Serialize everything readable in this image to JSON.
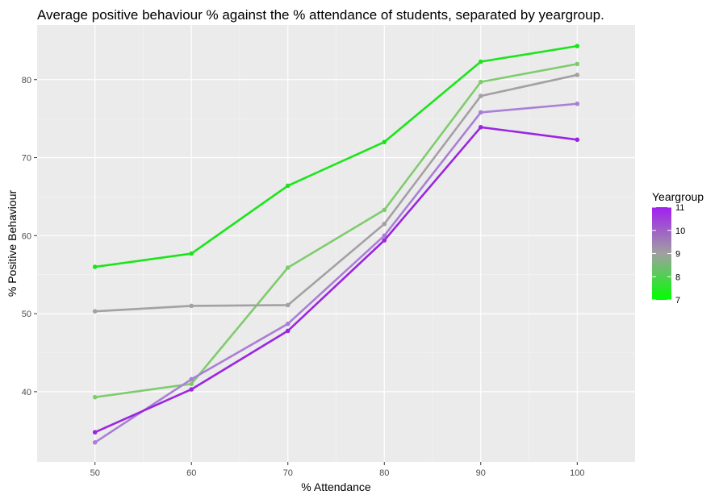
{
  "chart_data": {
    "type": "line",
    "title": "Average positive behaviour % against the % attendance of students, separated by yeargroup.",
    "xlabel": "% Attendance",
    "ylabel": "% Positive Behaviour",
    "x": [
      50,
      60,
      70,
      80,
      90,
      100
    ],
    "x_ticks": [
      "50",
      "60",
      "70",
      "80",
      "90",
      "100"
    ],
    "y_ticks": [
      "40",
      "50",
      "60",
      "70",
      "80"
    ],
    "xlim": [
      44,
      106
    ],
    "ylim": [
      31,
      87
    ],
    "grid": true,
    "legend": {
      "title": "Yeargroup",
      "placement": "right",
      "type": "color-gradient",
      "min": 7,
      "max": 11,
      "ticks": [
        "7",
        "8",
        "9",
        "10",
        "11"
      ],
      "low_color": "#00ff00",
      "high_color": "#a020f0"
    },
    "series": [
      {
        "group": 7,
        "color": "#1ae51a",
        "values": [
          56.0,
          57.7,
          66.4,
          72.0,
          82.3,
          84.3
        ]
      },
      {
        "group": 8,
        "color": "#7fcc6e",
        "values": [
          39.3,
          41.0,
          55.9,
          63.3,
          79.7,
          82.0
        ]
      },
      {
        "group": 9,
        "color": "#a4a0a4",
        "values": [
          50.3,
          51.0,
          51.1,
          61.5,
          77.9,
          80.6
        ]
      },
      {
        "group": 10,
        "color": "#aa7fd6",
        "values": [
          33.5,
          41.6,
          48.7,
          60.0,
          75.8,
          76.9
        ]
      },
      {
        "group": 11,
        "color": "#9b26e0",
        "values": [
          34.8,
          40.3,
          47.8,
          59.4,
          73.9,
          72.3
        ]
      }
    ]
  }
}
